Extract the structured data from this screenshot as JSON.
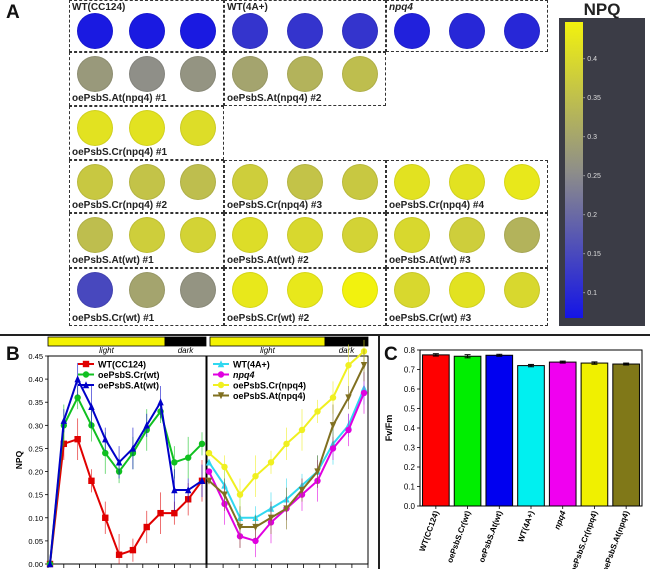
{
  "panel_a": {
    "letter": "A",
    "colorbar": {
      "title": "NPQ",
      "ticks": [
        "0.4",
        "0.35",
        "0.3",
        "0.25",
        "0.2",
        "0.15",
        "0.1"
      ],
      "range": [
        0.07,
        0.45
      ],
      "colors": [
        "#1414e6",
        "#f2f20e"
      ]
    },
    "strains": [
      {
        "label": "WT(CC124)",
        "npq": [
          0.08,
          0.08,
          0.08
        ],
        "italic": false
      },
      {
        "label": "WT(4A+)",
        "npq": [
          0.12,
          0.12,
          0.12
        ],
        "italic": false
      },
      {
        "label": "npq4",
        "npq": [
          0.09,
          0.1,
          0.1
        ],
        "italic": true
      },
      {
        "label": "oePsbS.At(npq4) #1",
        "npq": [
          0.28,
          0.26,
          0.27
        ],
        "italic": false
      },
      {
        "label": "oePsbS.At(npq4) #2",
        "npq": [
          0.3,
          0.33,
          0.35
        ],
        "italic": false
      },
      {
        "label": "oePsbS.Cr(npq4) #1",
        "npq": [
          0.42,
          0.42,
          0.41
        ],
        "italic": false
      },
      {
        "label": "oePsbS.Cr(npq4) #2",
        "npq": [
          0.37,
          0.36,
          0.35
        ],
        "italic": false
      },
      {
        "label": "oePsbS.Cr(npq4) #3",
        "npq": [
          0.38,
          0.36,
          0.37
        ],
        "italic": false
      },
      {
        "label": "oePsbS.Cr(npq4) #4",
        "npq": [
          0.42,
          0.42,
          0.43
        ],
        "italic": false
      },
      {
        "label": "oePsbS.At(wt) #1",
        "npq": [
          0.35,
          0.38,
          0.39
        ],
        "italic": false
      },
      {
        "label": "oePsbS.At(wt) #2",
        "npq": [
          0.41,
          0.4,
          0.39
        ],
        "italic": false
      },
      {
        "label": "oePsbS.At(wt) #3",
        "npq": [
          0.4,
          0.38,
          0.33
        ],
        "italic": false
      },
      {
        "label": "oePsbS.Cr(wt) #1",
        "npq": [
          0.15,
          0.3,
          0.27
        ],
        "italic": false
      },
      {
        "label": "oePsbS.Cr(wt) #2",
        "npq": [
          0.43,
          0.43,
          0.45
        ],
        "italic": false
      },
      {
        "label": "oePsbS.Cr(wt) #3",
        "npq": [
          0.4,
          0.42,
          0.4
        ],
        "italic": false
      }
    ]
  },
  "chart_data": [
    {
      "type": "line",
      "panel": "B",
      "ylabel": "NPQ",
      "ylim": [
        0,
        0.45
      ],
      "y_ticks": [
        "0.00",
        "0.05",
        "0.10",
        "0.15",
        "0.20",
        "0.25",
        "0.30",
        "0.35",
        "0.40",
        "0.45"
      ],
      "phase_labels": [
        "light",
        "dark",
        "light",
        "dark"
      ],
      "sub_charts": [
        {
          "series": [
            {
              "name": "WT(CC124)",
              "color": "#e00000",
              "marker": "square",
              "values": [
                0.0,
                0.26,
                0.27,
                0.18,
                0.1,
                0.02,
                0.03,
                0.08,
                0.11,
                0.11,
                0.14,
                0.18
              ]
            },
            {
              "name": "oePsbS.Cr(wt)",
              "color": "#10c020",
              "marker": "circle",
              "values": [
                0.0,
                0.3,
                0.36,
                0.3,
                0.24,
                0.2,
                0.24,
                0.29,
                0.33,
                0.22,
                0.23,
                0.26
              ]
            },
            {
              "name": "oePsbS.At(wt)",
              "color": "#0000c8",
              "marker": "triangle",
              "values": [
                0.0,
                0.31,
                0.4,
                0.34,
                0.27,
                0.22,
                0.25,
                0.3,
                0.35,
                0.16,
                0.16,
                0.18
              ]
            }
          ]
        },
        {
          "series": [
            {
              "name": "WT(4A+)",
              "color": "#30d8f0",
              "marker": "triangle",
              "values": [
                0.22,
                0.17,
                0.1,
                0.1,
                0.12,
                0.14,
                0.17,
                0.2,
                0.26,
                0.3,
                0.38
              ]
            },
            {
              "name": "npq4",
              "color": "#e000e0",
              "marker": "circle",
              "values": [
                0.2,
                0.13,
                0.06,
                0.05,
                0.09,
                0.12,
                0.15,
                0.18,
                0.25,
                0.29,
                0.37
              ]
            },
            {
              "name": "oePsbS.Cr(npq4)",
              "color": "#f0f020",
              "marker": "circle",
              "values": [
                0.24,
                0.21,
                0.15,
                0.19,
                0.22,
                0.26,
                0.29,
                0.33,
                0.36,
                0.43,
                0.46
              ]
            },
            {
              "name": "oePsbS.At(npq4)",
              "color": "#807020",
              "marker": "triangle-down",
              "values": [
                0.18,
                0.15,
                0.08,
                0.08,
                0.1,
                0.12,
                0.16,
                0.2,
                0.3,
                0.36,
                0.43
              ]
            }
          ]
        }
      ]
    },
    {
      "type": "bar",
      "panel": "C",
      "ylabel": "Fv/Fm",
      "ylim": [
        0,
        0.8
      ],
      "y_ticks": [
        "0.0",
        "0.1",
        "0.2",
        "0.3",
        "0.4",
        "0.5",
        "0.6",
        "0.7",
        "0.8"
      ],
      "categories": [
        "WT(CC124)",
        "oePsbS.Cr(wt)",
        "oePsbS.At(wt)",
        "WT(4A+)",
        "npq4",
        "oePsbS.Cr(npq4)",
        "oePsbS.At(npq4)"
      ],
      "values": [
        0.775,
        0.768,
        0.773,
        0.72,
        0.738,
        0.733,
        0.728
      ],
      "errors": [
        0.006,
        0.008,
        0.005,
        0.006,
        0.005,
        0.006,
        0.005
      ],
      "colors": [
        "#ff0000",
        "#00ee00",
        "#0000f0",
        "#00f0f0",
        "#f000f0",
        "#f0f000",
        "#807818"
      ]
    }
  ],
  "panel_letters": {
    "b": "B",
    "c": "C"
  }
}
